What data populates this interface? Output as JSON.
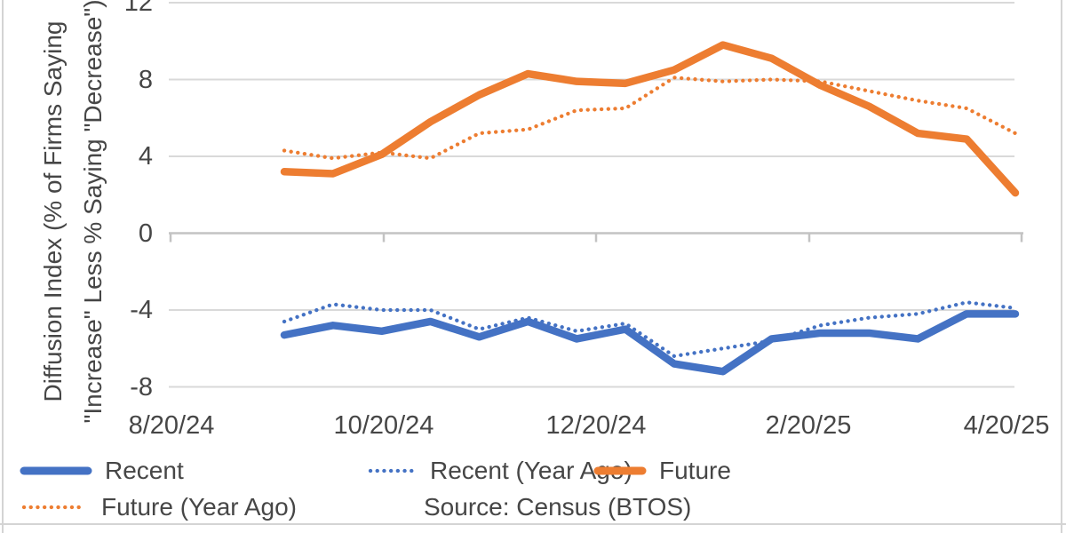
{
  "chart": {
    "y_axis_title_line1": "Diffusion Index (% of Firms Saying",
    "y_axis_title_line2": "\"Increase\" Less % Saying \"Decrease\")",
    "source_note": "Source: Census (BTOS)",
    "colors": {
      "blue": "#4472C4",
      "orange": "#ED7D31",
      "gridline": "#D9D9D9",
      "axis_line": "#C3C3C3",
      "text": "#464646",
      "border": "#D4D4D4"
    }
  },
  "legend": [
    {
      "label": "Recent",
      "style": "solid",
      "color": "#4472C4"
    },
    {
      "label": "Recent (Year Ago)",
      "style": "dotted",
      "color": "#4472C4"
    },
    {
      "label": "Future",
      "style": "solid",
      "color": "#ED7D31"
    },
    {
      "label": "Future (Year Ago)",
      "style": "dotted",
      "color": "#ED7D31"
    }
  ],
  "chart_data": {
    "type": "line",
    "title": "",
    "xlabel": "",
    "ylabel": "Diffusion Index (% of Firms Saying \"Increase\" Less % Saying \"Decrease\")",
    "ylim": [
      -8,
      12
    ],
    "y_ticks": [
      12,
      8,
      4,
      0,
      -4,
      -8
    ],
    "x_tick_labels": [
      "8/20/24",
      "10/20/24",
      "12/20/24",
      "2/20/25",
      "4/20/25"
    ],
    "x_dates_estimated": [
      "9/22/24",
      "10/6/24",
      "10/20/24",
      "11/3/24",
      "11/17/24",
      "12/1/24",
      "12/15/24",
      "12/29/24",
      "1/12/25",
      "1/26/25",
      "2/9/25",
      "2/23/25",
      "3/9/25",
      "3/23/25",
      "4/6/25",
      "4/20/25"
    ],
    "grid": true,
    "legend_position": "bottom",
    "series": [
      {
        "name": "Recent",
        "style": "solid",
        "color": "#4472C4",
        "values": [
          -5.3,
          -4.8,
          -5.1,
          -4.6,
          -5.4,
          -4.6,
          -5.5,
          -5.0,
          -6.8,
          -7.2,
          -5.5,
          -5.2,
          -5.2,
          -5.5,
          -4.2,
          -4.2
        ]
      },
      {
        "name": "Recent (Year Ago)",
        "style": "dotted",
        "color": "#4472C4",
        "values": [
          -4.6,
          -3.7,
          -4.0,
          -4.0,
          -5.0,
          -4.4,
          -5.1,
          -4.7,
          -6.4,
          -6.0,
          -5.6,
          -4.8,
          -4.4,
          -4.2,
          -3.6,
          -3.9
        ]
      },
      {
        "name": "Future",
        "style": "solid",
        "color": "#ED7D31",
        "values": [
          3.2,
          3.1,
          4.1,
          5.8,
          7.2,
          8.3,
          7.9,
          7.8,
          8.5,
          9.8,
          9.1,
          7.7,
          6.6,
          5.2,
          4.9,
          2.1
        ]
      },
      {
        "name": "Future (Year Ago)",
        "style": "dotted",
        "color": "#ED7D31",
        "values": [
          4.3,
          3.9,
          4.2,
          3.9,
          5.2,
          5.4,
          6.4,
          6.5,
          8.1,
          7.9,
          8.0,
          7.9,
          7.4,
          6.9,
          6.5,
          5.2
        ]
      }
    ]
  }
}
